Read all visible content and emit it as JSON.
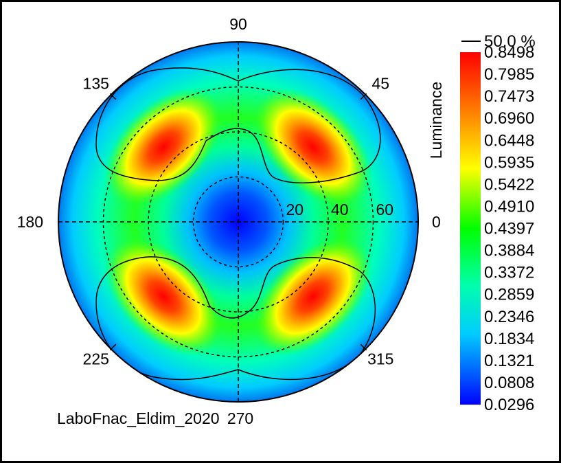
{
  "chart_data": {
    "type": "polar-heatmap",
    "title": "",
    "quantity_label": "Luminance",
    "contour_label": "50.0 %",
    "footer_text": "LaboFnac_Eldim_2020",
    "angle_labels": [
      "0",
      "45",
      "90",
      "135",
      "180",
      "225",
      "270",
      "315"
    ],
    "angle_values": [
      0,
      45,
      90,
      135,
      180,
      225,
      270,
      315
    ],
    "radial_labels": [
      "20",
      "40",
      "60"
    ],
    "radial_values": [
      20,
      40,
      60
    ],
    "radial_max": 80,
    "colorbar_ticks": [
      "0.8498",
      "0.7985",
      "0.7473",
      "0.6960",
      "0.6448",
      "0.5935",
      "0.5422",
      "0.4910",
      "0.4397",
      "0.3884",
      "0.3372",
      "0.2859",
      "0.2346",
      "0.1834",
      "0.1321",
      "0.0808",
      "0.0296"
    ],
    "value_range": [
      0.0296,
      0.8498
    ],
    "hotspots": [
      {
        "azimuth": 45,
        "inclination": 47,
        "value": 0.85
      },
      {
        "azimuth": 135,
        "inclination": 47,
        "value": 0.85
      },
      {
        "azimuth": 225,
        "inclination": 47,
        "value": 0.82
      },
      {
        "azimuth": 315,
        "inclination": 47,
        "value": 0.82
      }
    ],
    "center_value": 0.05,
    "colormap": [
      "#0000ff",
      "#0088ff",
      "#00ddff",
      "#00ff88",
      "#00ff00",
      "#88ff00",
      "#ffff00",
      "#ff8800",
      "#ff0000"
    ]
  }
}
